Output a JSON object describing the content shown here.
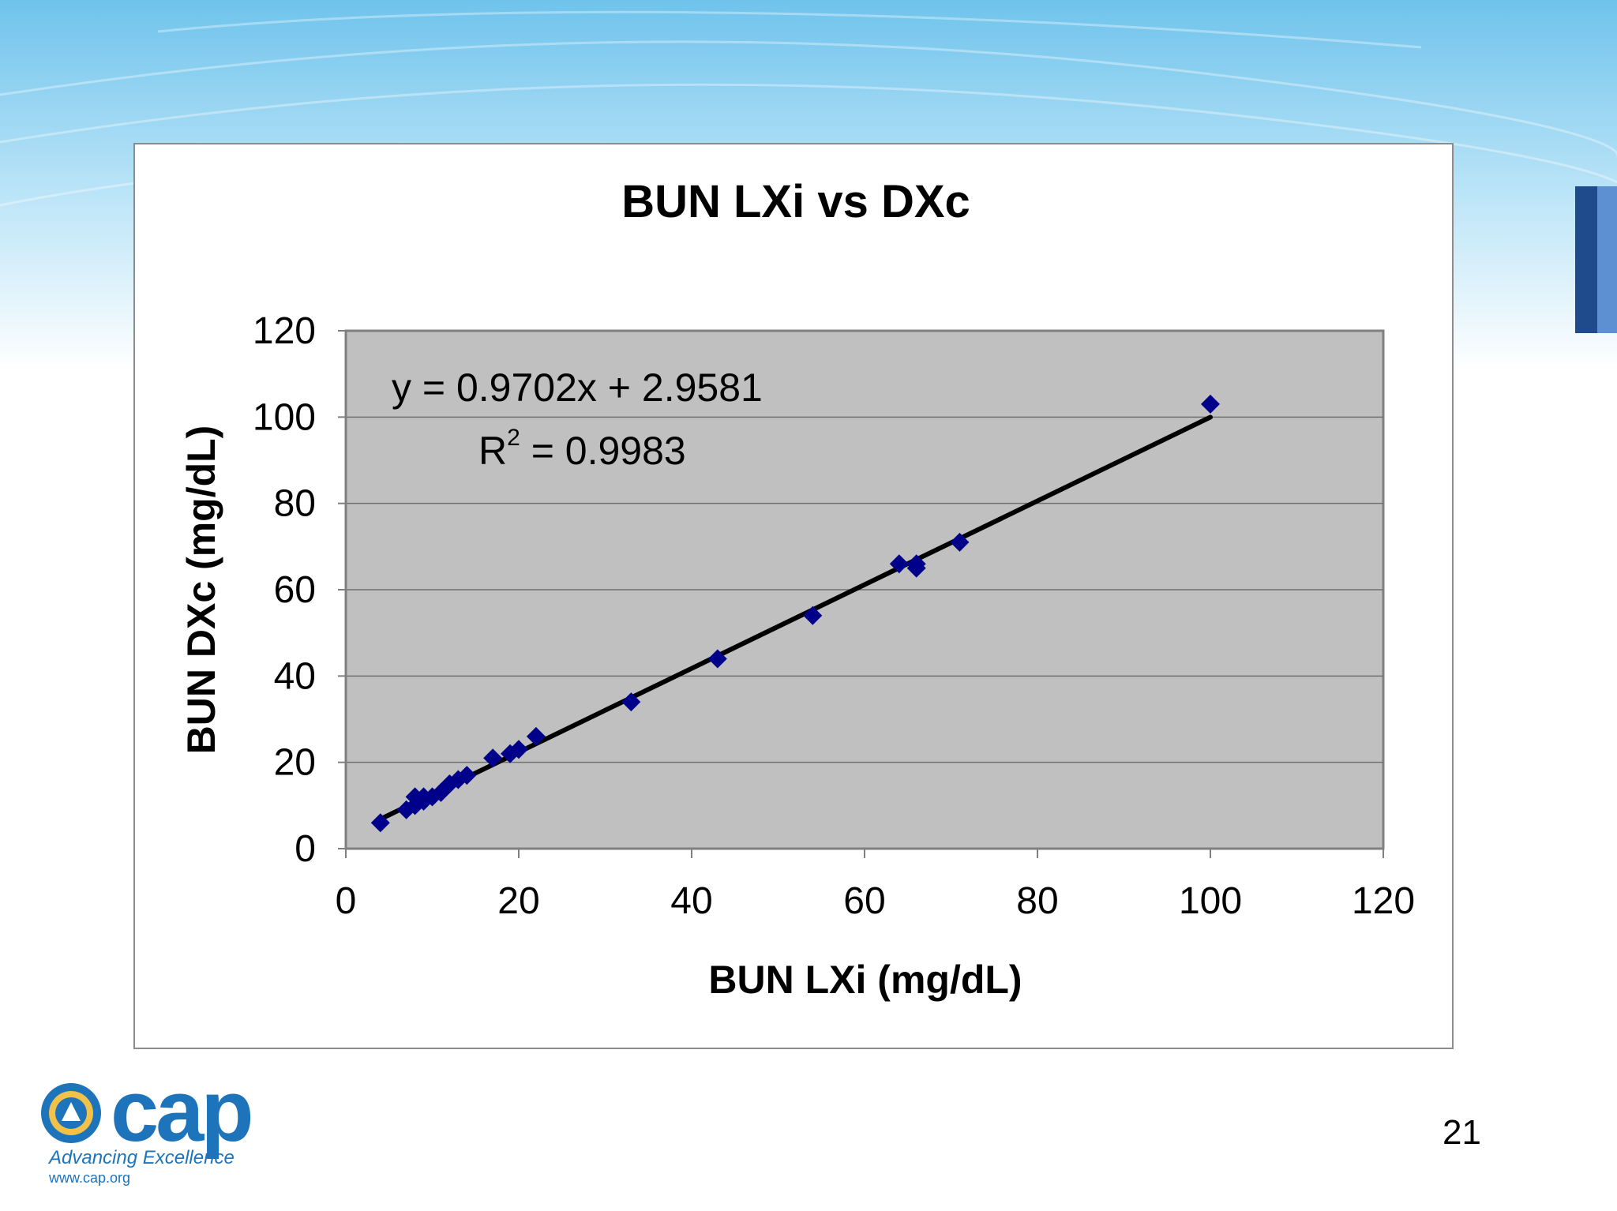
{
  "slide": {
    "number": "21",
    "logo": {
      "brand_text": "cap",
      "tagline": "Advancing Excellence",
      "url": "www.cap.org"
    },
    "colors": {
      "sky_top": "#6fc3ec",
      "sky_mid": "#bfe6f8",
      "accent_dark": "#1f4a8c",
      "accent_light": "#5d8fd3",
      "logo_blue": "#1d74bb"
    }
  },
  "chart_data": {
    "type": "scatter",
    "title": "BUN LXi vs DXc",
    "xlabel": "BUN LXi (mg/dL)",
    "ylabel": "BUN DXc (mg/dL)",
    "xlim": [
      0,
      120
    ],
    "ylim": [
      0,
      120
    ],
    "xticks": [
      0,
      20,
      40,
      60,
      80,
      100,
      120
    ],
    "yticks": [
      0,
      20,
      40,
      60,
      80,
      100,
      120
    ],
    "grid": true,
    "plot_background": "#c0c0c0",
    "marker_color": "#00008b",
    "trendline_color": "#000000",
    "equation": "y = 0.9702x + 2.9581",
    "r2_label": "R",
    "r2_value": " = 0.9983",
    "r2_superscript": "2",
    "series": [
      {
        "name": "BUN",
        "points": [
          [
            4,
            6
          ],
          [
            7,
            9
          ],
          [
            8,
            10
          ],
          [
            8,
            12
          ],
          [
            9,
            11
          ],
          [
            9,
            12
          ],
          [
            10,
            12
          ],
          [
            11,
            13
          ],
          [
            12,
            15
          ],
          [
            13,
            16
          ],
          [
            14,
            17
          ],
          [
            17,
            21
          ],
          [
            19,
            22
          ],
          [
            20,
            23
          ],
          [
            22,
            26
          ],
          [
            33,
            34
          ],
          [
            43,
            44
          ],
          [
            54,
            54
          ],
          [
            64,
            66
          ],
          [
            66,
            66
          ],
          [
            66,
            65
          ],
          [
            71,
            71
          ],
          [
            100,
            103
          ]
        ]
      }
    ],
    "trendline": {
      "slope": 0.9702,
      "intercept": 2.9581,
      "x_range": [
        4,
        100
      ]
    }
  }
}
